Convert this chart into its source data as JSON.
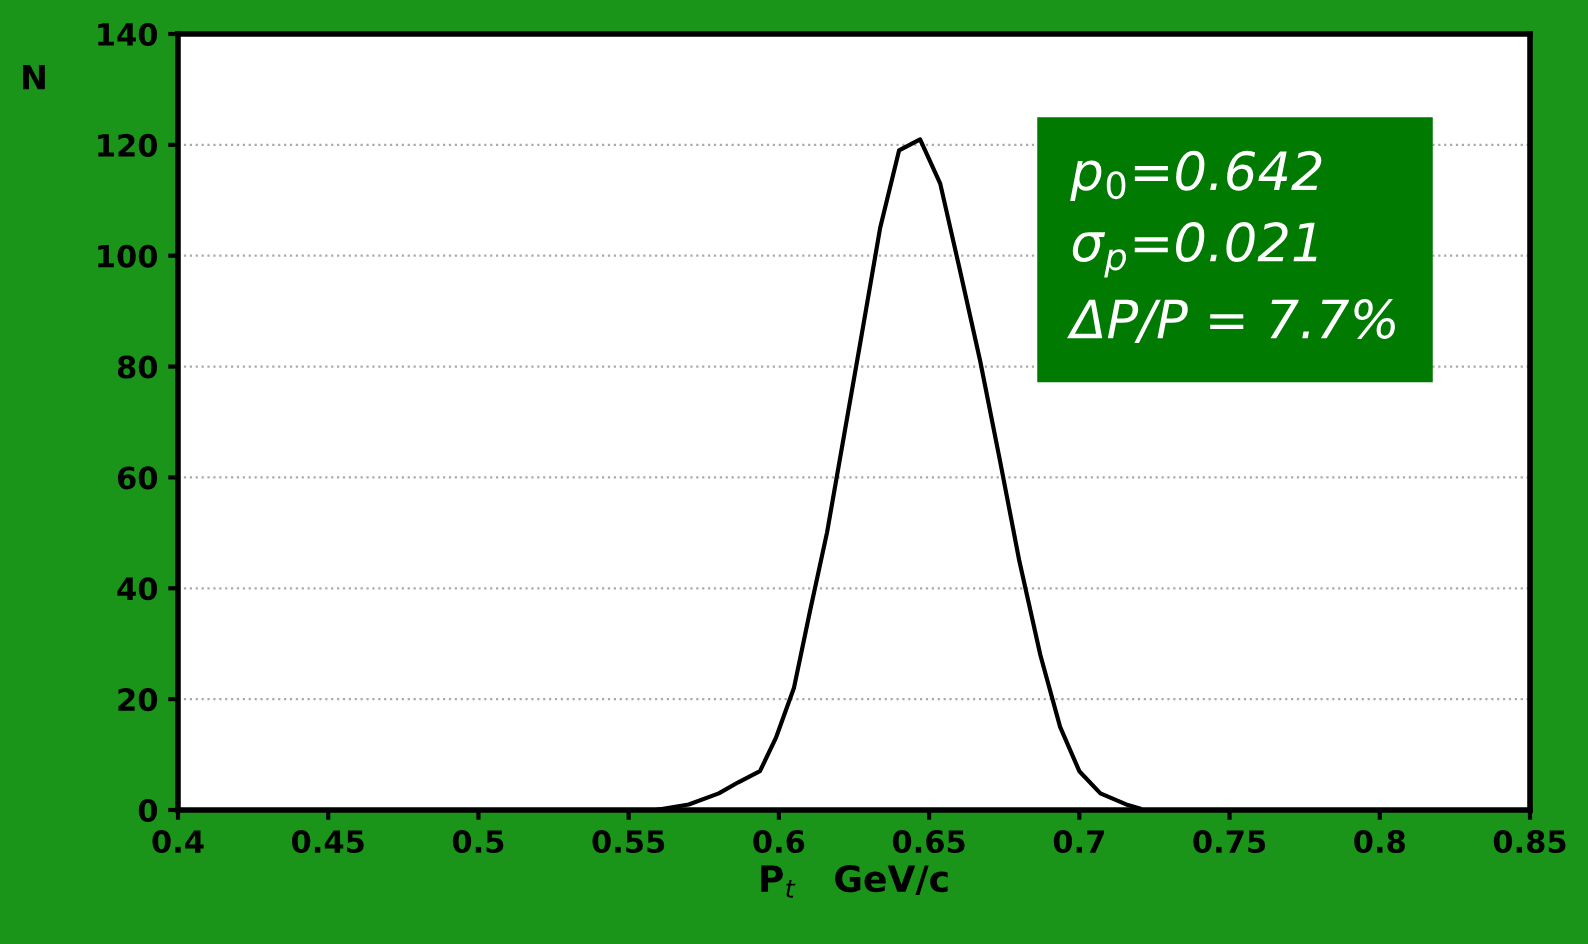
{
  "chart_data": {
    "type": "line",
    "xlabel": "P$_{t}$   GeV/c",
    "ylabel": "N",
    "annotations": [
      "p$_{0}$=0.642",
      "σ$_{p}$=0.021",
      "ΔP/P = 7.7%"
    ],
    "series": [
      {
        "color": "#000000",
        "x": [
          0.56,
          0.57,
          0.58,
          0.5865,
          0.5937,
          0.599,
          0.605,
          0.6104,
          0.616,
          0.6215,
          0.627,
          0.6337,
          0.64,
          0.647,
          0.6537,
          0.66,
          0.667,
          0.6736,
          0.68,
          0.687,
          0.6936,
          0.7,
          0.707,
          0.7156,
          0.72
        ],
        "values": [
          0.1,
          1,
          3,
          5,
          7,
          13,
          22,
          36,
          50,
          67,
          84,
          105,
          119,
          121,
          113,
          98,
          81,
          63,
          45,
          28,
          15,
          7,
          3,
          1,
          0.3
        ]
      }
    ],
    "xlim": [
      0.4,
      0.85
    ],
    "xticks": [
      0.4,
      0.45,
      0.5,
      0.55,
      0.6,
      0.65,
      0.7,
      0.75,
      0.8,
      0.85
    ],
    "ylim": [
      0,
      140
    ],
    "yticks": [
      0,
      20,
      40,
      60,
      80,
      100,
      120,
      140
    ],
    "grid": "y",
    "marker": "none",
    "line_style": "solid",
    "legend": false
  }
}
